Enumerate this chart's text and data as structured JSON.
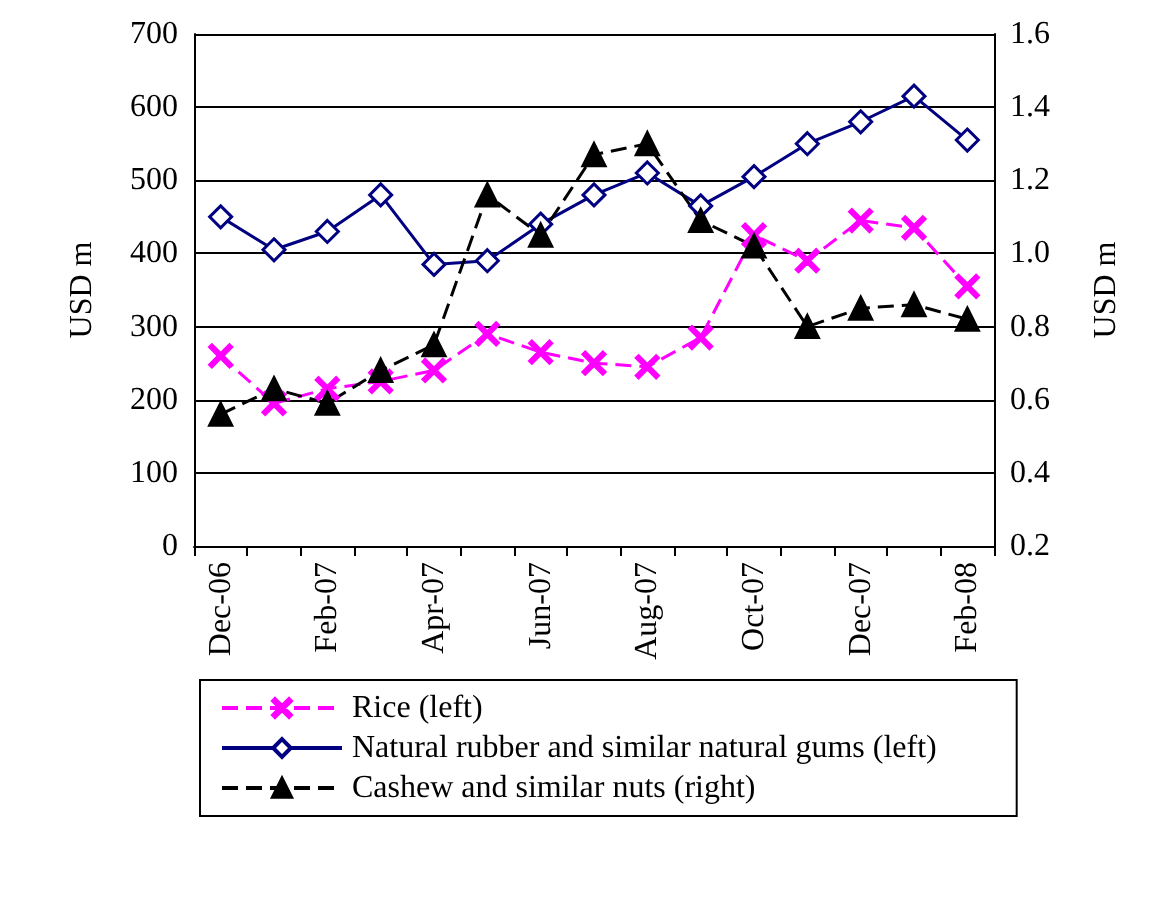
{
  "chart_data": {
    "type": "line",
    "categories": [
      "Dec-06",
      null,
      "Feb-07",
      null,
      "Apr-07",
      null,
      "Jun-07",
      null,
      "Aug-07",
      null,
      "Oct-07",
      null,
      "Dec-07",
      null,
      "Feb-08"
    ],
    "series": [
      {
        "name": "Rice (left)",
        "color": "#ff00ff",
        "marker": "cross",
        "line_style": "dashed",
        "values": [
          260,
          195,
          215,
          225,
          240,
          290,
          265,
          250,
          245,
          285,
          425,
          390,
          445,
          435,
          355
        ]
      },
      {
        "name": "Natural rubber and similar natural gums (left)",
        "color": "#000080",
        "marker": "diamond",
        "line_style": "solid",
        "values": [
          450,
          405,
          430,
          480,
          385,
          390,
          440,
          480,
          510,
          465,
          505,
          550,
          580,
          615,
          555
        ]
      },
      {
        "name": "Cashew and similar nuts (right)",
        "color": "#000000",
        "marker": "triangle",
        "line_style": "dashed",
        "axis": "y2",
        "values": [
          0.56,
          0.63,
          0.59,
          0.68,
          0.75,
          1.16,
          1.05,
          1.27,
          1.3,
          1.09,
          1.02,
          0.8,
          0.85,
          0.86,
          0.82
        ]
      }
    ],
    "ylabel": "USD m",
    "y2label": "USD m",
    "ylim": [
      0,
      700
    ],
    "yticks": [
      0,
      100,
      200,
      300,
      400,
      500,
      600,
      700
    ],
    "y2lim": [
      0.2,
      1.6
    ],
    "y2ticks": [
      0.2,
      0.4,
      0.6,
      0.8,
      {
        "value": 1,
        "label": "1.0"
      },
      1.2,
      1.4,
      1.6
    ],
    "grid": "y",
    "legend": "bottom"
  }
}
